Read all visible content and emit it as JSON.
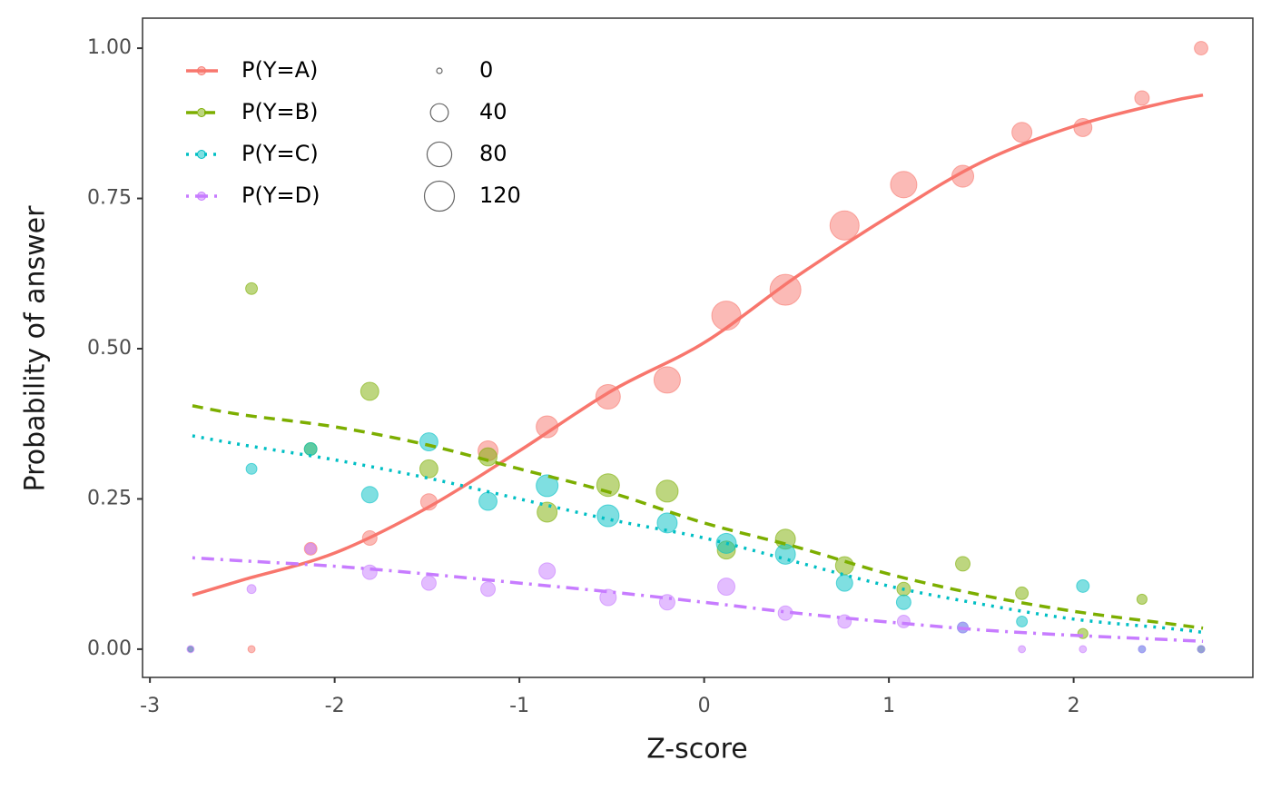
{
  "chart_data": {
    "type": "scatter",
    "x_label": "Z-score",
    "y_label": "Probability of answer",
    "x": [
      -2.78,
      -2.45,
      -2.13,
      -1.81,
      -1.49,
      -1.17,
      -0.85,
      -0.52,
      -0.2,
      0.12,
      0.44,
      0.76,
      1.08,
      1.4,
      1.72,
      2.05,
      2.37,
      2.69
    ],
    "fit_x": [
      -2.77,
      -2.5,
      -2,
      -1.5,
      -1,
      -0.5,
      0,
      0.5,
      1,
      1.5,
      2,
      2.5,
      2.7
    ],
    "series": [
      {
        "name": "P(Y=A)",
        "color": "#F8766D",
        "linestyle": "solid",
        "values": [
          0,
          0,
          0.167,
          0.185,
          0.245,
          0.33,
          0.37,
          0.42,
          0.448,
          0.555,
          0.598,
          0.705,
          0.773,
          0.787,
          0.86,
          0.868,
          0.917,
          1.0
        ],
        "sizes": [
          0,
          3,
          18,
          25,
          33,
          51,
          62,
          79,
          92,
          113,
          128,
          113,
          92,
          62,
          51,
          41,
          25,
          21
        ],
        "fit": [
          0.09,
          0.115,
          0.16,
          0.235,
          0.33,
          0.43,
          0.51,
          0.62,
          0.72,
          0.81,
          0.87,
          0.91,
          0.922
        ]
      },
      {
        "name": "P(Y=B)",
        "color": "#7CAE00",
        "linestyle": "dashed",
        "values": [
          0,
          0.6,
          0.333,
          0.429,
          0.3,
          0.32,
          0.228,
          0.273,
          0.263,
          0.165,
          0.183,
          0.139,
          0.1,
          0.142,
          0.093,
          0.026,
          0.083,
          0
        ],
        "sizes": [
          0,
          15,
          18,
          41,
          41,
          41,
          51,
          67,
          62,
          41,
          51,
          41,
          21,
          25,
          18,
          10,
          10,
          3
        ],
        "fit": [
          0.405,
          0.39,
          0.37,
          0.34,
          0.3,
          0.26,
          0.21,
          0.17,
          0.125,
          0.09,
          0.063,
          0.043,
          0.035
        ]
      },
      {
        "name": "P(Y=C)",
        "color": "#00BFC4",
        "linestyle": "dotted",
        "values": [
          0,
          0.3,
          0.333,
          0.257,
          0.345,
          0.246,
          0.272,
          0.222,
          0.21,
          0.176,
          0.158,
          0.11,
          0.078,
          0.036,
          0.046,
          0.105,
          0,
          0
        ],
        "sizes": [
          0,
          12,
          18,
          33,
          41,
          41,
          62,
          62,
          51,
          51,
          51,
          33,
          25,
          12,
          12,
          18,
          3,
          3
        ],
        "fit": [
          0.355,
          0.34,
          0.315,
          0.285,
          0.25,
          0.215,
          0.185,
          0.145,
          0.105,
          0.075,
          0.05,
          0.035,
          0.028
        ]
      },
      {
        "name": "P(Y=D)",
        "color": "#C77CFF",
        "linestyle": "dotdash",
        "values": [
          0,
          0.1,
          0.167,
          0.128,
          0.11,
          0.1,
          0.13,
          0.086,
          0.078,
          0.104,
          0.06,
          0.046,
          0.046,
          0.036,
          0,
          0,
          0,
          0
        ],
        "sizes": [
          3,
          7,
          12,
          25,
          25,
          25,
          33,
          33,
          29,
          37,
          25,
          21,
          18,
          12,
          3,
          3,
          3,
          3
        ],
        "fit": [
          0.152,
          0.147,
          0.138,
          0.125,
          0.11,
          0.095,
          0.078,
          0.06,
          0.045,
          0.032,
          0.023,
          0.016,
          0.013
        ]
      }
    ],
    "size_legend": [
      0,
      40,
      80,
      120
    ],
    "xlim": [
      -3.04,
      2.97
    ],
    "ylim": [
      -0.047,
      1.05
    ],
    "xticks": [
      -3,
      -2,
      -1,
      0,
      1,
      2
    ],
    "yticks": [
      {
        "value": 0,
        "label": "0.00"
      },
      {
        "value": 0.25,
        "label": "0.25"
      },
      {
        "value": 0.5,
        "label": "0.50"
      },
      {
        "value": 0.75,
        "label": "0.75"
      },
      {
        "value": 1,
        "label": "1.00"
      }
    ],
    "legend_position": "top-left"
  }
}
